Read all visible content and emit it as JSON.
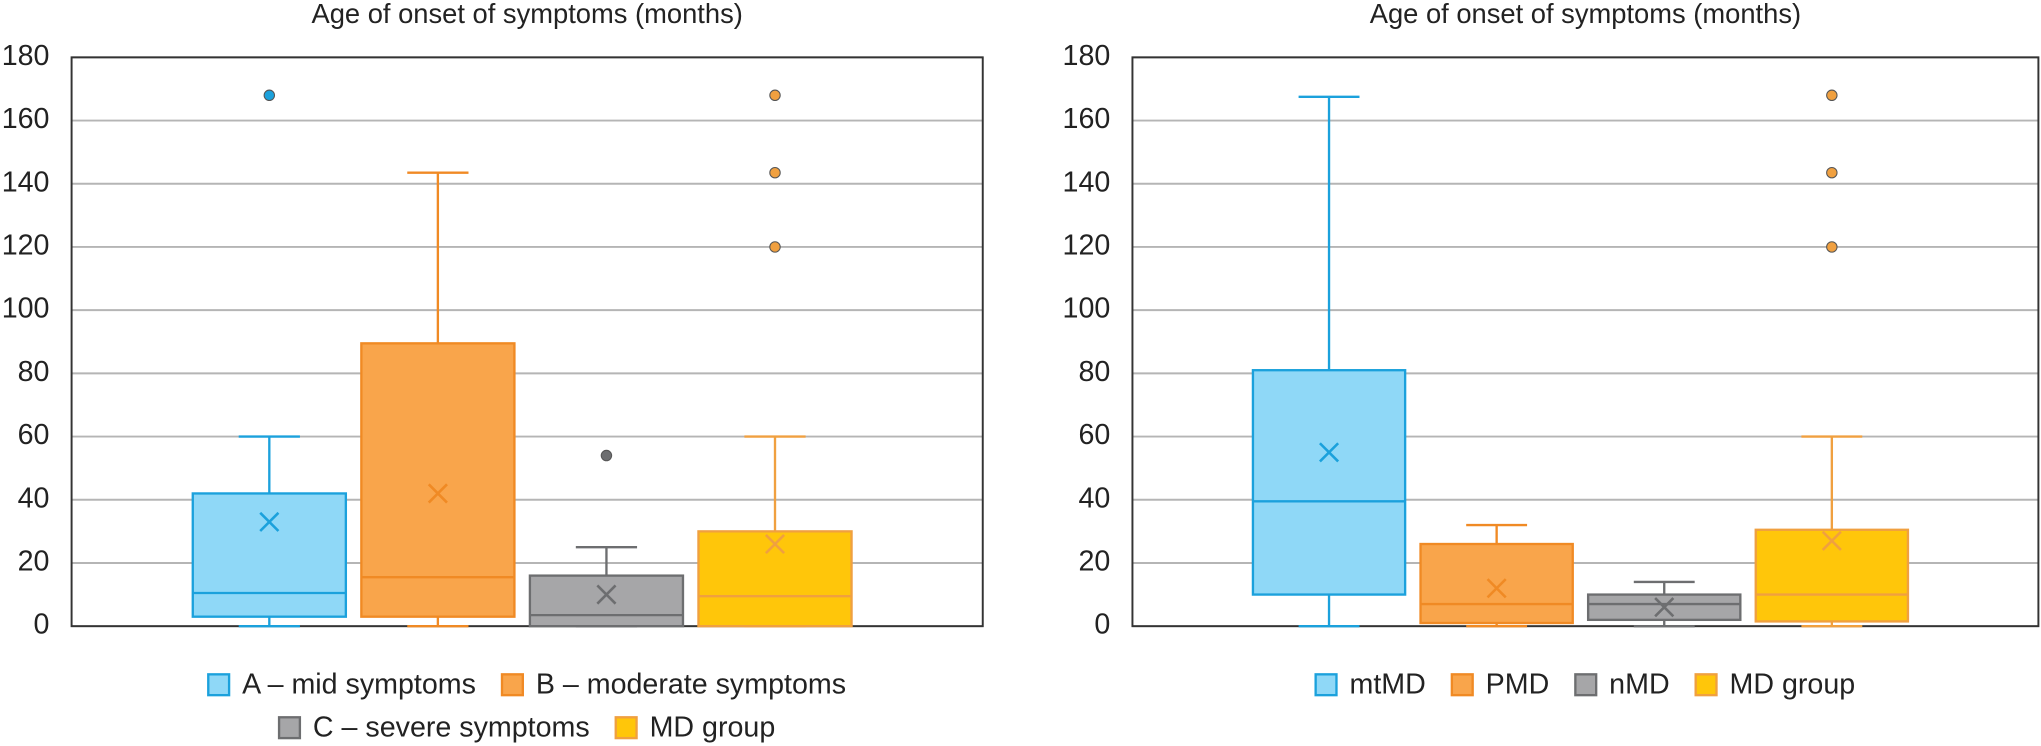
{
  "chart_data": [
    {
      "type": "box",
      "title": "Age of onset of symptoms (months)",
      "ylim": [
        0,
        180
      ],
      "yticks": [
        0,
        20,
        40,
        60,
        80,
        100,
        120,
        140,
        160,
        180
      ],
      "grid": true,
      "series": [
        {
          "name": "A – mid symptoms",
          "color": "#8fd8f7",
          "edge_color": "#1ba1dc",
          "min": 0,
          "q1": 3,
          "median": 10.5,
          "q3": 42,
          "max": 60,
          "mean": 33,
          "outliers": [
            168
          ]
        },
        {
          "name": "B – moderate symptoms",
          "color": "#f9a54b",
          "edge_color": "#f08a24",
          "min": 0,
          "q1": 3,
          "median": 15.5,
          "q3": 89.5,
          "max": 143.5,
          "mean": 42,
          "outliers": []
        },
        {
          "name": "C – severe symptoms",
          "color": "#a6a6a8",
          "edge_color": "#6d6e70",
          "min": 0,
          "q1": 0,
          "median": 3.5,
          "q3": 16,
          "max": 25,
          "mean": 10,
          "outliers": [
            54
          ]
        },
        {
          "name": "MD group",
          "color": "#ffc60a",
          "edge_color": "#f0a040",
          "min": 0,
          "q1": 0,
          "median": 9.5,
          "q3": 30,
          "max": 60,
          "mean": 26,
          "outliers": [
            120,
            143.5,
            168
          ]
        }
      ]
    },
    {
      "type": "box",
      "title": "Age of onset of symptoms (months)",
      "ylim": [
        0,
        180
      ],
      "yticks": [
        0,
        20,
        40,
        60,
        80,
        100,
        120,
        140,
        160,
        180
      ],
      "grid": true,
      "series": [
        {
          "name": "mtMD",
          "color": "#8fd8f7",
          "edge_color": "#1ba1dc",
          "min": 0,
          "q1": 10,
          "median": 39.5,
          "q3": 81,
          "max": 167.5,
          "mean": 55,
          "outliers": []
        },
        {
          "name": "PMD",
          "color": "#f9a54b",
          "edge_color": "#f08a24",
          "min": 0,
          "q1": 1,
          "median": 7,
          "q3": 26,
          "max": 32,
          "mean": 12,
          "outliers": []
        },
        {
          "name": "nMD",
          "color": "#a6a6a8",
          "edge_color": "#6d6e70",
          "min": 0,
          "q1": 2,
          "median": 7,
          "q3": 10,
          "max": 14,
          "mean": 6,
          "outliers": []
        },
        {
          "name": "MD group",
          "color": "#ffc60a",
          "edge_color": "#f0a040",
          "min": 0,
          "q1": 1.5,
          "median": 10,
          "q3": 30.5,
          "max": 60,
          "mean": 27,
          "outliers": [
            120,
            143.5,
            168
          ]
        }
      ]
    }
  ]
}
